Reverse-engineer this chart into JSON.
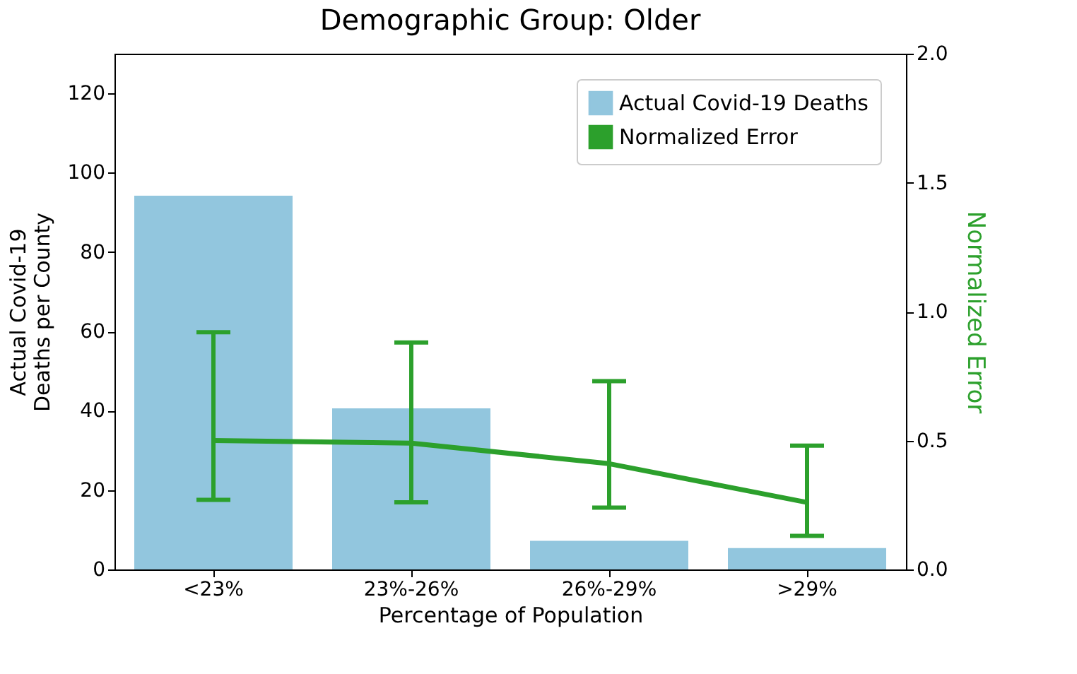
{
  "chart_data": {
    "type": "bar",
    "title": "Demographic Group: Older",
    "xlabel": "Percentage of Population",
    "ylabel": "Actual Covid-19\nDeaths per County",
    "y2label": "Normalized Error",
    "categories": [
      "<23%",
      "23%-26%",
      "26%-29%",
      ">29%"
    ],
    "series": [
      {
        "name": "Actual Covid-19 Deaths",
        "color": "#92c6de",
        "values": [
          94.2,
          40.6,
          7.2,
          5.4
        ]
      },
      {
        "name": "Normalized Error",
        "type": "line",
        "axis": "y2",
        "color": "#2ca02c",
        "values": [
          0.5,
          0.49,
          0.41,
          0.26
        ],
        "errors": [
          [
            0.27,
            0.92
          ],
          [
            0.26,
            0.88
          ],
          [
            0.24,
            0.73
          ],
          [
            0.13,
            0.48
          ]
        ]
      }
    ],
    "ylim": [
      0,
      130
    ],
    "yticks": [
      0,
      20,
      40,
      60,
      80,
      100,
      120
    ],
    "y2lim": [
      0,
      2
    ],
    "y2ticks": [
      {
        "value": 0,
        "label": "0.0"
      },
      {
        "value": 0.5,
        "label": "0.5"
      },
      {
        "value": 1,
        "label": "1.0"
      },
      {
        "value": 1.5,
        "label": "1.5"
      },
      {
        "value": 2,
        "label": "2.0"
      }
    ],
    "grid": false,
    "legend": "top right"
  }
}
